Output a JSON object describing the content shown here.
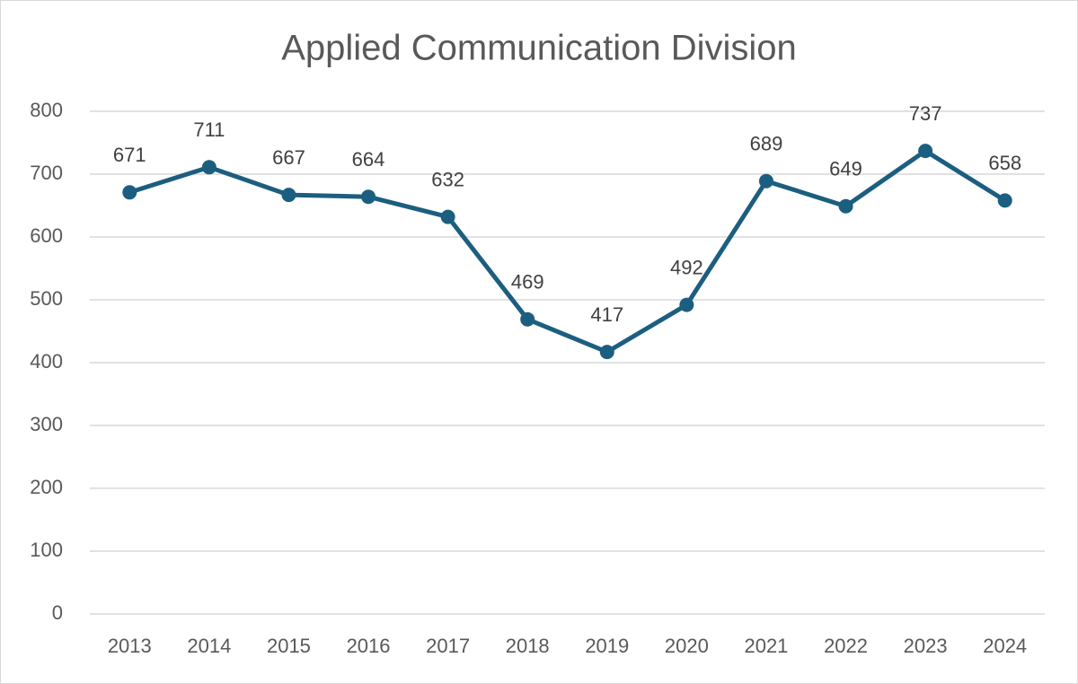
{
  "chart_data": {
    "type": "line",
    "title": "Applied Communication Division",
    "categories": [
      "2013",
      "2014",
      "2015",
      "2016",
      "2017",
      "2018",
      "2019",
      "2020",
      "2021",
      "2022",
      "2023",
      "2024"
    ],
    "values": [
      671,
      711,
      667,
      664,
      632,
      469,
      417,
      492,
      689,
      649,
      737,
      658
    ],
    "color": "#1b5e80",
    "ylim": [
      0,
      800
    ],
    "yticks": [
      0,
      100,
      200,
      300,
      400,
      500,
      600,
      700,
      800
    ],
    "grid": true
  }
}
